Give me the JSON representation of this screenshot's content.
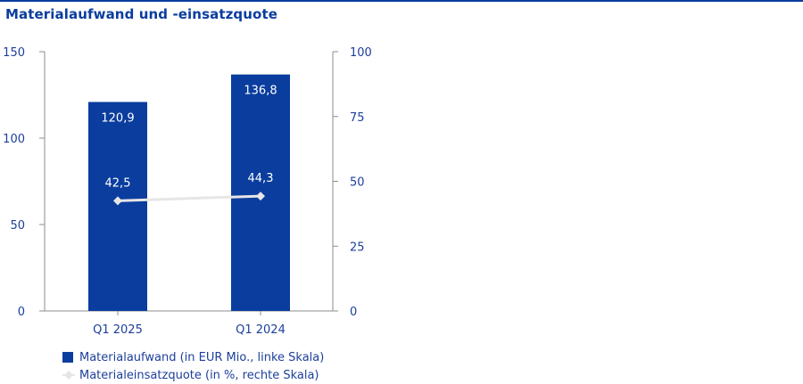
{
  "title": "Materialaufwand und -einsatzquote",
  "colors": {
    "bar": "#0a3d9e",
    "line": "#e6e6e6",
    "text": "#1d3f9b",
    "axis": "#8c8c8c"
  },
  "chart_data": {
    "type": "bar",
    "categories": [
      "Q1 2025",
      "Q1 2024"
    ],
    "series": [
      {
        "name": "Materialaufwand (in EUR Mio., linke Skala)",
        "type": "bar",
        "axis": "left",
        "values": [
          120.9,
          136.8
        ],
        "labels": [
          "120,9",
          "136,8"
        ]
      },
      {
        "name": "Materialeinsatzquote (in %, rechte Skala)",
        "type": "line",
        "axis": "right",
        "values": [
          42.5,
          44.3
        ],
        "labels": [
          "42,5",
          "44,3"
        ]
      }
    ],
    "y_left": {
      "lim": [
        0,
        150
      ],
      "ticks": [
        0,
        50,
        100,
        150
      ]
    },
    "y_right": {
      "lim": [
        0,
        100
      ],
      "ticks": [
        0,
        25,
        50,
        75,
        100
      ]
    },
    "legend_position": "bottom-left",
    "grid": false
  },
  "legend": {
    "bar_label": "Materialaufwand (in EUR Mio., linke Skala)",
    "line_label": "Materialeinsatzquote (in %, rechte Skala)"
  }
}
